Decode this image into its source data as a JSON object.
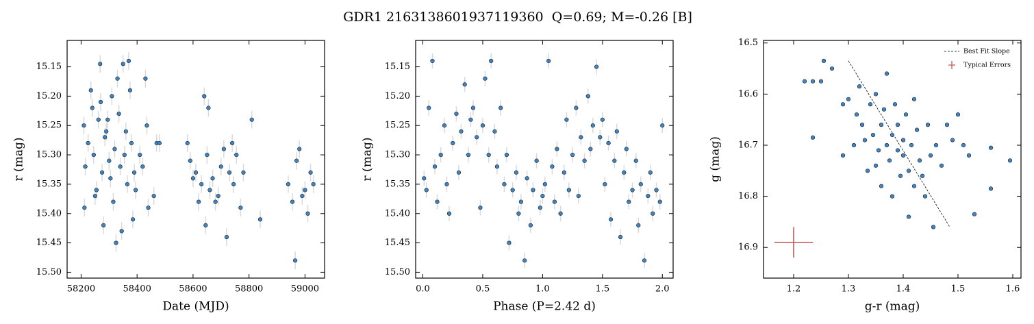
{
  "title": "GDR1 2163138601937119360  Q=0.69; M=-0.26 [B]",
  "chart_data": [
    {
      "type": "scatter",
      "xlabel": "Date (MJD)",
      "ylabel": "r (mag)",
      "color": "#3d85c6",
      "error_color": "#d9d9d9",
      "yerr": 0.015,
      "xlim": [
        58150,
        59070
      ],
      "ylim": [
        15.51,
        15.105
      ],
      "xticks": [
        58200,
        58400,
        58600,
        58800,
        59000
      ],
      "yticks": [
        15.15,
        {
          "value": 15.2,
          "label": "15.20"
        },
        15.25,
        {
          "value": 15.3,
          "label": "15.30"
        },
        15.35,
        {
          "value": 15.4,
          "label": "15.40"
        },
        15.45,
        {
          "value": 15.5,
          "label": "15.50"
        }
      ],
      "x": [
        58210,
        58215,
        58212,
        58225,
        58235,
        58240,
        58245,
        58250,
        58255,
        58262,
        58268,
        58270,
        58275,
        58280,
        58285,
        58290,
        58295,
        58300,
        58305,
        58310,
        58315,
        58320,
        58325,
        58330,
        58335,
        58340,
        58345,
        58350,
        58355,
        58360,
        58365,
        58370,
        58375,
        58380,
        58385,
        58390,
        58395,
        58410,
        58420,
        58430,
        58435,
        58440,
        58460,
        58470,
        58480,
        58580,
        58590,
        58600,
        58610,
        58620,
        58630,
        58640,
        58645,
        58650,
        58655,
        58660,
        58670,
        58680,
        58690,
        58700,
        58710,
        58720,
        58730,
        58740,
        58745,
        58755,
        58770,
        58780,
        58810,
        58840,
        58940,
        58955,
        58965,
        58970,
        58980,
        58990,
        59000,
        59010,
        59020,
        59030
      ],
      "values": [
        15.25,
        15.32,
        15.39,
        15.28,
        15.19,
        15.22,
        15.3,
        15.37,
        15.36,
        15.24,
        15.145,
        15.21,
        15.33,
        15.42,
        15.27,
        15.26,
        15.24,
        15.31,
        15.34,
        15.2,
        15.38,
        15.29,
        15.45,
        15.17,
        15.23,
        15.32,
        15.43,
        15.145,
        15.3,
        15.26,
        15.35,
        15.14,
        15.19,
        15.28,
        15.41,
        15.33,
        15.36,
        15.3,
        15.32,
        15.17,
        15.25,
        15.39,
        15.37,
        15.28,
        15.28,
        15.28,
        15.31,
        15.34,
        15.33,
        15.38,
        15.35,
        15.2,
        15.42,
        15.3,
        15.22,
        15.36,
        15.34,
        15.38,
        15.37,
        15.32,
        15.29,
        15.44,
        15.33,
        15.28,
        15.35,
        15.3,
        15.39,
        15.33,
        15.24,
        15.41,
        15.35,
        15.38,
        15.48,
        15.31,
        15.29,
        15.37,
        15.36,
        15.4,
        15.33,
        15.35
      ]
    },
    {
      "type": "scatter",
      "xlabel": "Phase (P=2.42 d)",
      "ylabel": "r (mag)",
      "color": "#3d85c6",
      "error_color": "#d9d9d9",
      "yerr": 0.013,
      "xlim": [
        -0.06,
        2.09
      ],
      "ylim": [
        15.51,
        15.105
      ],
      "xticks": [
        {
          "value": 0,
          "label": "0.0"
        },
        0.5,
        {
          "value": 1,
          "label": "1.0"
        },
        1.5,
        {
          "value": 2,
          "label": "2.0"
        }
      ],
      "yticks": [
        15.15,
        {
          "value": 15.2,
          "label": "15.20"
        },
        15.25,
        {
          "value": 15.3,
          "label": "15.30"
        },
        15.35,
        {
          "value": 15.4,
          "label": "15.40"
        },
        15.45,
        {
          "value": 15.5,
          "label": "15.50"
        }
      ],
      "x": [
        0.01,
        0.03,
        0.05,
        0.08,
        0.1,
        0.12,
        0.15,
        0.18,
        0.2,
        0.22,
        0.25,
        0.28,
        0.3,
        0.32,
        0.35,
        0.38,
        0.4,
        0.42,
        0.45,
        0.48,
        0.5,
        0.52,
        0.55,
        0.57,
        0.6,
        0.62,
        0.65,
        0.68,
        0.7,
        0.72,
        0.75,
        0.78,
        0.8,
        0.82,
        0.85,
        0.87,
        0.9,
        0.92,
        0.95,
        0.98,
        1.0,
        1.02,
        1.05,
        1.08,
        1.1,
        1.12,
        1.15,
        1.18,
        1.2,
        1.22,
        1.25,
        1.28,
        1.3,
        1.32,
        1.35,
        1.38,
        1.4,
        1.42,
        1.45,
        1.48,
        1.5,
        1.52,
        1.55,
        1.57,
        1.6,
        1.62,
        1.65,
        1.68,
        1.7,
        1.72,
        1.75,
        1.78,
        1.8,
        1.82,
        1.85,
        1.88,
        1.9,
        1.92,
        1.95,
        1.98,
        2.0
      ],
      "values": [
        15.34,
        15.36,
        15.22,
        15.14,
        15.32,
        15.38,
        15.3,
        15.25,
        15.35,
        15.4,
        15.28,
        15.23,
        15.33,
        15.26,
        15.18,
        15.3,
        15.24,
        15.22,
        15.27,
        15.39,
        15.25,
        15.17,
        15.3,
        15.14,
        15.26,
        15.32,
        15.22,
        15.35,
        15.3,
        15.45,
        15.36,
        15.33,
        15.4,
        15.38,
        15.48,
        15.34,
        15.42,
        15.36,
        15.31,
        15.39,
        15.37,
        15.35,
        15.14,
        15.32,
        15.38,
        15.29,
        15.4,
        15.33,
        15.24,
        15.36,
        15.3,
        15.22,
        15.37,
        15.27,
        15.31,
        15.2,
        15.29,
        15.25,
        15.15,
        15.27,
        15.24,
        15.35,
        15.28,
        15.41,
        15.31,
        15.26,
        15.44,
        15.33,
        15.29,
        15.38,
        15.36,
        15.31,
        15.42,
        15.35,
        15.48,
        15.37,
        15.33,
        15.4,
        15.36,
        15.38,
        15.25
      ]
    },
    {
      "type": "scatter",
      "xlabel": "g-r (mag)",
      "ylabel": "g (mag)",
      "color": "#3d85c6",
      "legend": "upper right",
      "xlim": [
        1.145,
        1.615
      ],
      "ylim": [
        16.96,
        16.495
      ],
      "xticks": [
        1.2,
        1.3,
        1.4,
        1.5,
        1.6
      ],
      "yticks": [
        16.5,
        16.6,
        16.7,
        16.8,
        16.9
      ],
      "x": [
        1.22,
        1.235,
        1.25,
        1.255,
        1.27,
        1.235,
        1.29,
        1.29,
        1.3,
        1.31,
        1.315,
        1.32,
        1.325,
        1.33,
        1.335,
        1.34,
        1.345,
        1.35,
        1.35,
        1.355,
        1.36,
        1.36,
        1.365,
        1.37,
        1.37,
        1.375,
        1.38,
        1.38,
        1.385,
        1.39,
        1.39,
        1.395,
        1.4,
        1.4,
        1.405,
        1.41,
        1.41,
        1.415,
        1.42,
        1.42,
        1.425,
        1.43,
        1.435,
        1.44,
        1.445,
        1.45,
        1.455,
        1.46,
        1.47,
        1.48,
        1.49,
        1.5,
        1.51,
        1.52,
        1.53,
        1.56,
        1.56,
        1.595
      ],
      "values": [
        16.575,
        16.575,
        16.575,
        16.535,
        16.55,
        16.685,
        16.62,
        16.72,
        16.61,
        16.7,
        16.64,
        16.585,
        16.66,
        16.69,
        16.75,
        16.62,
        16.68,
        16.6,
        16.74,
        16.71,
        16.66,
        16.78,
        16.63,
        16.7,
        16.56,
        16.73,
        16.68,
        16.8,
        16.62,
        16.71,
        16.66,
        16.76,
        16.69,
        16.72,
        16.64,
        16.84,
        16.75,
        16.7,
        16.61,
        16.78,
        16.67,
        16.73,
        16.76,
        16.8,
        16.66,
        16.72,
        16.86,
        16.7,
        16.74,
        16.66,
        16.69,
        16.64,
        16.7,
        16.72,
        16.835,
        16.705,
        16.785,
        16.73
      ],
      "fit": {
        "name": "Best Fit Slope",
        "color": "#000000",
        "x": [
          1.3,
          1.485
        ],
        "values": [
          16.535,
          16.86
        ]
      },
      "typical_error": {
        "name": "Typical Errors",
        "color": "#c0504d",
        "x": 1.2,
        "value": 16.89,
        "xerr": 0.035,
        "yerr": 0.03
      }
    }
  ]
}
